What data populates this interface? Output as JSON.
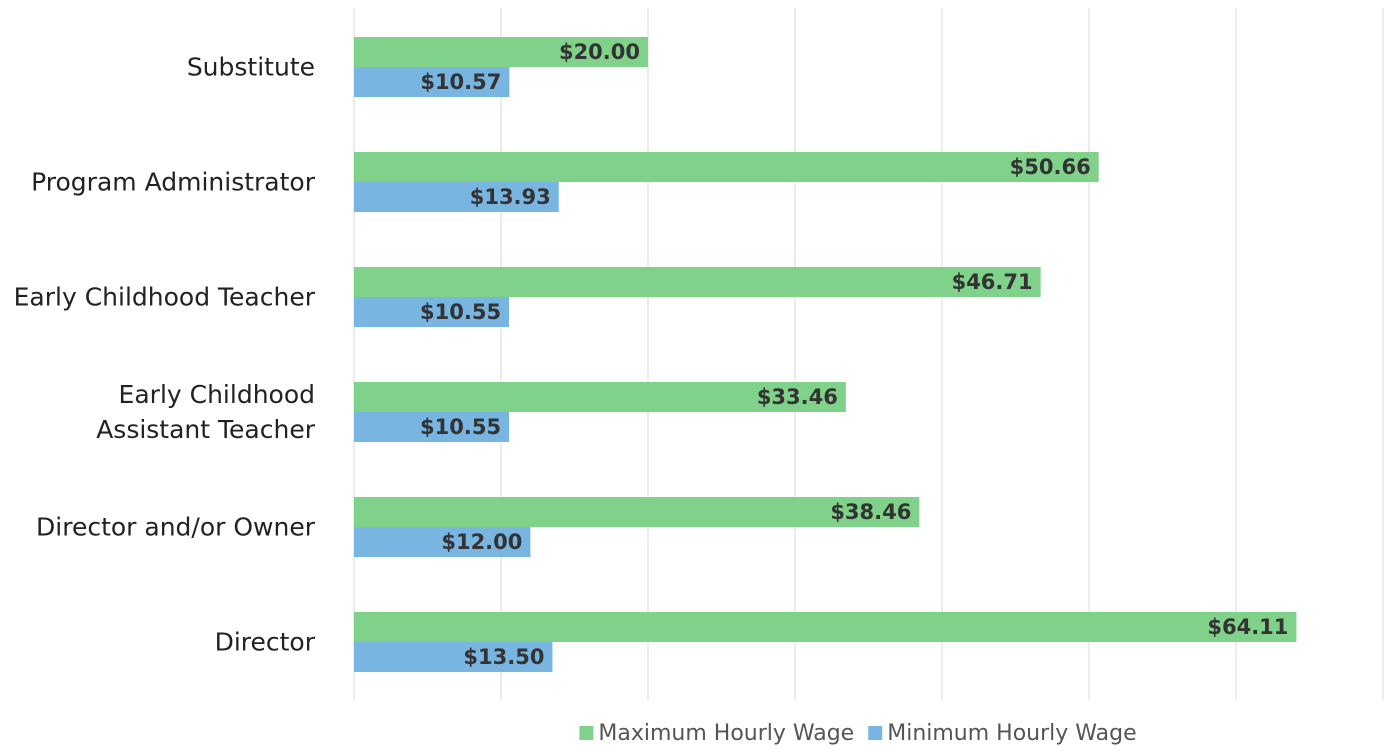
{
  "chart_data": {
    "type": "hbar",
    "categories": [
      "Substitute",
      "Program Administrator",
      "Early Childhood Teacher",
      "Early Childhood\nAssistant Teacher",
      "Director and/or Owner",
      "Director"
    ],
    "series": [
      {
        "name": "Maximum Hourly Wage",
        "color": "#80d28a",
        "values": [
          20.0,
          50.66,
          46.71,
          33.46,
          38.46,
          64.11
        ],
        "value_labels": [
          "$20.00",
          "$50.66",
          "$46.71",
          "$33.46",
          "$38.46",
          "$64.11"
        ]
      },
      {
        "name": "Minimum Hourly Wage",
        "color": "#78b5e1",
        "values": [
          10.57,
          13.93,
          10.55,
          10.55,
          12.0,
          13.5
        ],
        "value_labels": [
          "$10.57",
          "$13.93",
          "$10.55",
          "$10.55",
          "$12.00",
          "$13.50"
        ]
      }
    ],
    "xlim": [
      0,
      70
    ],
    "xticks": [
      0,
      10,
      20,
      30,
      40,
      50,
      60,
      70
    ],
    "grid": true,
    "legend": "bottom"
  }
}
